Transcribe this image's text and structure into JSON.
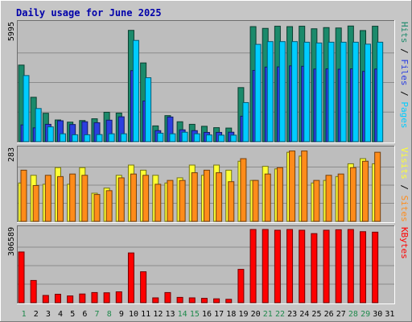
{
  "chart_data": {
    "type": "bar",
    "title": "Daily usage for June 2025",
    "categories": [
      "1",
      "2",
      "3",
      "4",
      "5",
      "6",
      "7",
      "8",
      "9",
      "10",
      "11",
      "12",
      "13",
      "14",
      "15",
      "16",
      "17",
      "18",
      "19",
      "20",
      "21",
      "22",
      "23",
      "24",
      "25",
      "26",
      "27",
      "28",
      "29",
      "30",
      "31"
    ],
    "weekend_days": [
      "1",
      "7",
      "8",
      "14",
      "15",
      "21",
      "22",
      "28",
      "29"
    ],
    "panels": [
      {
        "id": "hits_files_pages",
        "ymax_label": "5995",
        "ylim": [
          0,
          5995
        ],
        "legend": [
          "Pages",
          "Files",
          "Hits"
        ],
        "series": [
          {
            "name": "Hits",
            "color": "#1b8a6b",
            "values": [
              3880,
              2250,
              1440,
              1100,
              990,
              1070,
              1160,
              1490,
              1450,
              5640,
              3990,
              800,
              1320,
              1010,
              880,
              780,
              710,
              690,
              2740,
              5830,
              5740,
              5850,
              5830,
              5850,
              5720,
              5780,
              5760,
              5860,
              5630,
              5850,
              0
            ]
          },
          {
            "name": "Files",
            "color": "#2b3fe0",
            "values": [
              850,
              700,
              880,
              1060,
              870,
              1010,
              960,
              1090,
              1260,
              3600,
              2060,
              560,
              1250,
              600,
              560,
              470,
              470,
              480,
              1290,
              3610,
              3780,
              3790,
              3840,
              3820,
              3680,
              3690,
              3670,
              3690,
              3560,
              3680,
              0
            ]
          },
          {
            "name": "Pages",
            "color": "#00ccff",
            "values": [
              3350,
              1680,
              750,
              400,
              350,
              350,
              360,
              400,
              400,
              5130,
              3240,
              430,
              400,
              480,
              400,
              340,
              330,
              330,
              1980,
              4930,
              5070,
              5070,
              5070,
              5040,
              5000,
              5040,
              5040,
              5040,
              4940,
              5040,
              0
            ]
          }
        ]
      },
      {
        "id": "visits_sites",
        "ymax_label": "283",
        "ylim": [
          0,
          283
        ],
        "legend": [
          "Sites",
          "Visits"
        ],
        "series": [
          {
            "name": "Visits",
            "color": "#ffff33",
            "values": [
              150,
              180,
              145,
              210,
              145,
              210,
              110,
              130,
              180,
              220,
              200,
              180,
              150,
              170,
              220,
              180,
              220,
              200,
              235,
              160,
              215,
              205,
              270,
              255,
              150,
              160,
              175,
              225,
              245,
              225,
              0
            ]
          },
          {
            "name": "Sites",
            "color": "#ff8c1a",
            "values": [
              200,
              140,
              180,
              175,
              185,
              180,
              105,
              120,
              170,
              185,
              180,
              145,
              160,
              160,
              190,
              200,
              190,
              155,
              245,
              160,
              185,
              210,
              275,
              275,
              160,
              180,
              185,
              210,
              235,
              270,
              0
            ]
          }
        ]
      },
      {
        "id": "kbytes",
        "ymax_label": "306589",
        "ylim": [
          0,
          306589
        ],
        "legend": [
          "KBytes"
        ],
        "series": [
          {
            "name": "KBytes",
            "color": "#ff0000",
            "values": [
              210000,
              92000,
              30000,
              35000,
              28000,
              36000,
              42000,
              41000,
              45000,
              206000,
              128000,
              20000,
              42000,
              22000,
              20000,
              18000,
              16000,
              14000,
              138000,
              303000,
              303000,
              300000,
              303000,
              300000,
              286000,
              300000,
              302000,
              303000,
              294000,
              292000,
              0
            ]
          }
        ]
      }
    ]
  }
}
